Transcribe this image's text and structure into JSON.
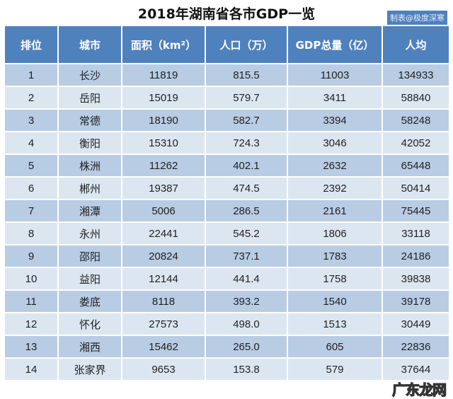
{
  "title": "2018年湖南省各市GDP一览",
  "credit": "制表@极度深寒",
  "headers": [
    "排位",
    "城市",
    "面积（km²）",
    "人口（万）",
    "GDP总量（亿）",
    "人均"
  ],
  "rows": [
    [
      "1",
      "长沙",
      "11819",
      "815.5",
      "11003",
      "134933"
    ],
    [
      "2",
      "岳阳",
      "15019",
      "579.7",
      "3411",
      "58840"
    ],
    [
      "3",
      "常德",
      "18190",
      "582.7",
      "3394",
      "58248"
    ],
    [
      "4",
      "衡阳",
      "15310",
      "724.3",
      "3046",
      "42052"
    ],
    [
      "5",
      "株洲",
      "11262",
      "402.1",
      "2632",
      "65448"
    ],
    [
      "6",
      "郴州",
      "19387",
      "474.5",
      "2392",
      "50414"
    ],
    [
      "7",
      "湘潭",
      "5006",
      "286.5",
      "2161",
      "75445"
    ],
    [
      "8",
      "永州",
      "22441",
      "545.2",
      "1806",
      "33118"
    ],
    [
      "9",
      "邵阳",
      "20824",
      "737.1",
      "1783",
      "24186"
    ],
    [
      "10",
      "益阳",
      "12144",
      "441.4",
      "1758",
      "39838"
    ],
    [
      "11",
      "娄底",
      "8118",
      "393.2",
      "1540",
      "39178"
    ],
    [
      "12",
      "怀化",
      "27573",
      "498.0",
      "1513",
      "30449"
    ],
    [
      "13",
      "湘西",
      "15462",
      "265.0",
      "605",
      "22836"
    ],
    [
      "14",
      "张家界",
      "9653",
      "153.8",
      "579",
      "37644"
    ]
  ],
  "watermark": "广东龙网"
}
